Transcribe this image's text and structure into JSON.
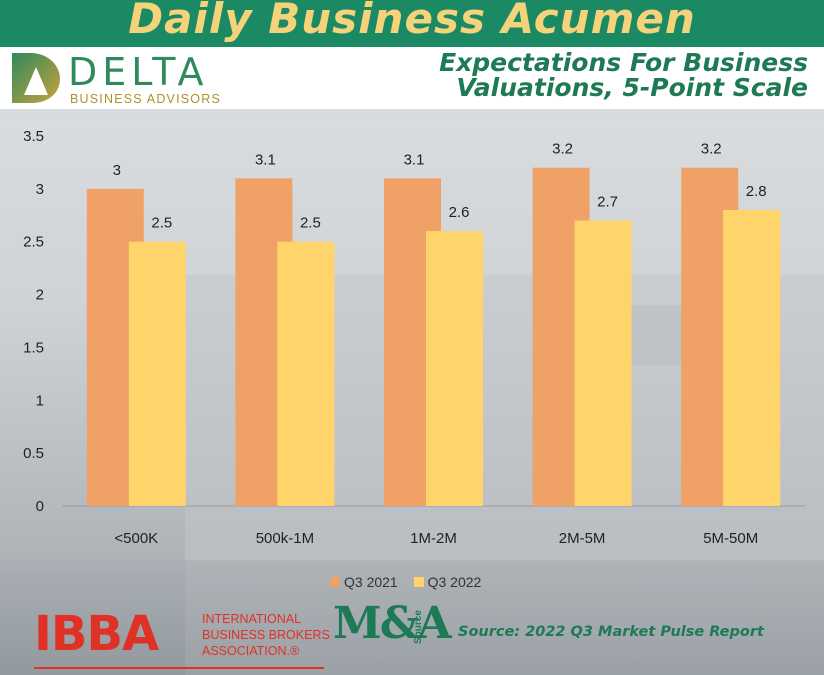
{
  "banner": {
    "title": "Daily Business Acumen"
  },
  "logo": {
    "name": "DELTA",
    "tagline": "BUSINESS ADVISORS"
  },
  "header": {
    "subtitle_line1": "Expectations For Business",
    "subtitle_line2": "Valuations, 5-Point Scale"
  },
  "colors": {
    "q3_2021": "#f0a266",
    "q3_2022": "#ffd56b",
    "banner": "#1b8a64",
    "banner_text": "#f4d37a",
    "subtitle": "#1d7a54",
    "ibba_red": "#e03126"
  },
  "chart_data": {
    "type": "bar",
    "categories": [
      "<500K",
      "500k-1M",
      "1M-2M",
      "2M-5M",
      "5M-50M"
    ],
    "series": [
      {
        "name": "Q3 2021",
        "values": [
          3,
          3.1,
          3.1,
          3.2,
          3.2
        ]
      },
      {
        "name": "Q3 2022",
        "values": [
          2.5,
          2.5,
          2.6,
          2.7,
          2.8
        ]
      }
    ],
    "ylim": [
      0,
      3.5
    ],
    "yticks": [
      "0",
      "0.5",
      "1",
      "1.5",
      "2",
      "2.5",
      "3",
      "3.5"
    ],
    "grid": false,
    "legend": "bottom",
    "data_labels": true
  },
  "footer": {
    "ibba_letters": "IBBA",
    "ibba_line1": "INTERNATIONAL",
    "ibba_line2": "BUSINESS BROKERS",
    "ibba_line3": "ASSOCIATION.®",
    "mna_logo": "M&A",
    "mna_source": "Source",
    "source_text": "Source: 2022 Q3 Market Pulse Report"
  }
}
